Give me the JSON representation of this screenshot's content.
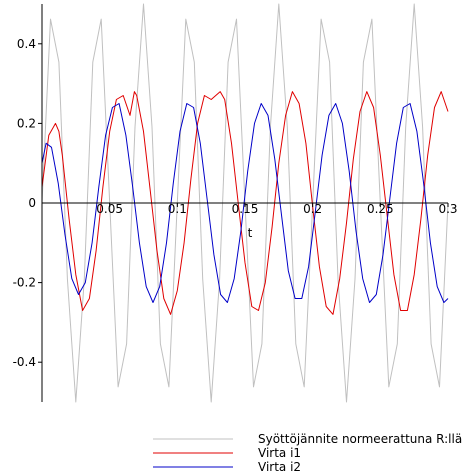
{
  "chart_data": {
    "type": "line",
    "xlabel": "t",
    "ylabel": "",
    "xlim": [
      0,
      0.3
    ],
    "ylim": [
      -0.5,
      0.5
    ],
    "x_ticks": [
      0.05,
      0.1,
      0.15,
      0.2,
      0.25,
      0.3
    ],
    "x_tick_labels": [
      "0.05",
      "0.1",
      "0.15",
      "0.2",
      "0.25",
      "0.3"
    ],
    "y_ticks": [
      0.4,
      0.2,
      0,
      -0.2,
      -0.4
    ],
    "y_tick_labels": [
      "0.4",
      "0.2",
      "0",
      "-0.2",
      "-0.4"
    ],
    "grid": false,
    "legend_position": "bottom-center",
    "series": [
      {
        "name": "Syöttöjännite normeerattuna R:llä",
        "color": "#c0c0c0",
        "x": [
          0,
          0.00625,
          0.0125,
          0.01875,
          0.025,
          0.03125,
          0.0375,
          0.04375,
          0.05,
          0.05625,
          0.0625,
          0.06875,
          0.075,
          0.08125,
          0.0875,
          0.09375,
          0.1,
          0.10625,
          0.1125,
          0.11875,
          0.125,
          0.13125,
          0.1375,
          0.14375,
          0.15,
          0.15625,
          0.1625,
          0.16875,
          0.175,
          0.18125,
          0.1875,
          0.19375,
          0.2,
          0.20625,
          0.2125,
          0.21875,
          0.225,
          0.23125,
          0.2375,
          0.24375,
          0.25,
          0.25625,
          0.2625,
          0.26875,
          0.275,
          0.28125,
          0.2875,
          0.29375,
          0.3
        ],
        "y": [
          0,
          0.462,
          0.354,
          -0.191,
          -0.5,
          -0.191,
          0.354,
          0.462,
          0,
          -0.462,
          -0.354,
          0.191,
          0.5,
          0.191,
          -0.354,
          -0.462,
          0,
          0.462,
          0.354,
          -0.191,
          -0.5,
          -0.191,
          0.354,
          0.462,
          0,
          -0.462,
          -0.354,
          0.191,
          0.5,
          0.191,
          -0.354,
          -0.462,
          0,
          0.462,
          0.354,
          -0.191,
          -0.5,
          -0.191,
          0.354,
          0.462,
          0,
          -0.462,
          -0.354,
          0.191,
          0.5,
          0.191,
          -0.354,
          -0.462,
          0
        ]
      },
      {
        "name": "Virta i1",
        "color": "#e00000",
        "x": [
          0,
          0.005,
          0.01,
          0.0125,
          0.015,
          0.02,
          0.025,
          0.03,
          0.035,
          0.04,
          0.045,
          0.05,
          0.055,
          0.06,
          0.065,
          0.0683,
          0.07,
          0.075,
          0.08,
          0.085,
          0.09,
          0.095,
          0.1,
          0.105,
          0.11,
          0.115,
          0.12,
          0.125,
          0.1317,
          0.135,
          0.14,
          0.145,
          0.15,
          0.155,
          0.16,
          0.165,
          0.17,
          0.175,
          0.18,
          0.185,
          0.19,
          0.195,
          0.2,
          0.205,
          0.21,
          0.215,
          0.22,
          0.225,
          0.23,
          0.235,
          0.24,
          0.245,
          0.25,
          0.255,
          0.26,
          0.265,
          0.27,
          0.275,
          0.28,
          0.285,
          0.29,
          0.295,
          0.3
        ],
        "y": [
          0.04,
          0.17,
          0.2,
          0.18,
          0.12,
          -0.04,
          -0.18,
          -0.27,
          -0.24,
          -0.12,
          0.04,
          0.18,
          0.26,
          0.27,
          0.22,
          0.28,
          0.27,
          0.18,
          0.03,
          -0.12,
          -0.24,
          -0.28,
          -0.22,
          -0.1,
          0.06,
          0.2,
          0.27,
          0.26,
          0.28,
          0.26,
          0.15,
          0.0,
          -0.15,
          -0.26,
          -0.27,
          -0.2,
          -0.06,
          0.1,
          0.22,
          0.28,
          0.25,
          0.15,
          -0.01,
          -0.16,
          -0.26,
          -0.28,
          -0.19,
          -0.05,
          0.11,
          0.23,
          0.28,
          0.24,
          0.12,
          -0.03,
          -0.18,
          -0.27,
          -0.27,
          -0.18,
          -0.04,
          0.12,
          0.24,
          0.28,
          0.23
        ]
      },
      {
        "name": "Virta i2",
        "color": "#0000c8",
        "x": [
          0,
          0.003,
          0.007,
          0.012,
          0.017,
          0.022,
          0.027,
          0.032,
          0.037,
          0.042,
          0.047,
          0.052,
          0.057,
          0.062,
          0.067,
          0.072,
          0.077,
          0.082,
          0.087,
          0.092,
          0.097,
          0.102,
          0.107,
          0.112,
          0.117,
          0.122,
          0.127,
          0.132,
          0.137,
          0.142,
          0.147,
          0.152,
          0.157,
          0.162,
          0.167,
          0.172,
          0.177,
          0.182,
          0.187,
          0.192,
          0.197,
          0.202,
          0.207,
          0.212,
          0.217,
          0.222,
          0.227,
          0.232,
          0.237,
          0.242,
          0.247,
          0.252,
          0.257,
          0.262,
          0.267,
          0.272,
          0.277,
          0.282,
          0.287,
          0.292,
          0.297,
          0.3
        ],
        "y": [
          0.1,
          0.15,
          0.14,
          0.05,
          -0.08,
          -0.19,
          -0.23,
          -0.2,
          -0.1,
          0.04,
          0.17,
          0.24,
          0.25,
          0.17,
          0.04,
          -0.1,
          -0.21,
          -0.25,
          -0.21,
          -0.1,
          0.05,
          0.18,
          0.25,
          0.24,
          0.15,
          0.01,
          -0.13,
          -0.23,
          -0.25,
          -0.19,
          -0.07,
          0.08,
          0.2,
          0.25,
          0.22,
          0.11,
          -0.03,
          -0.17,
          -0.24,
          -0.24,
          -0.16,
          -0.02,
          0.12,
          0.22,
          0.25,
          0.2,
          0.08,
          -0.07,
          -0.19,
          -0.25,
          -0.23,
          -0.13,
          0.01,
          0.15,
          0.24,
          0.25,
          0.18,
          0.05,
          -0.1,
          -0.21,
          -0.25,
          -0.24
        ]
      }
    ]
  }
}
